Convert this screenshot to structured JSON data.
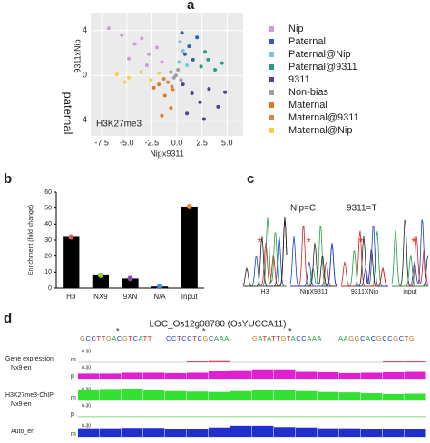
{
  "panel_a": {
    "label": "a",
    "type": "scatter",
    "annotation": "H3K27me3",
    "xlabel": "Nipx9311",
    "ylabel": "9311xNip",
    "ylabel_side": "paternal",
    "xlim": [
      -8.6,
      6.6
    ],
    "ylim": [
      -5.4,
      5.6
    ],
    "xticks": [
      -7.5,
      {
        "value": -5,
        "label": "-5.0"
      },
      -2.5,
      {
        "value": 0,
        "label": "0.0"
      },
      2.5,
      {
        "value": 5,
        "label": "5.0"
      }
    ],
    "yticks": [
      -4,
      0,
      4
    ],
    "grid": true,
    "series": [
      {
        "name": "Nip",
        "color": "#d49ad6",
        "x": [
          -6.8,
          -5.5,
          -4.2,
          -3.5,
          -2.8,
          -2,
          -1.5,
          -4.8,
          -3
        ],
        "y": [
          4.2,
          3.6,
          2.8,
          3.3,
          1.9,
          2.5,
          1.2,
          1.5,
          0.9
        ]
      },
      {
        "name": "Paternal",
        "color": "#2f5fb3",
        "x": [
          0.5,
          1.2,
          2,
          0.8,
          1.6
        ],
        "y": [
          3.8,
          2.6,
          3.4,
          1.9,
          1.4
        ]
      },
      {
        "name": "Paternal@Nip",
        "color": "#79c6e0",
        "x": [
          0.2,
          0.6,
          1,
          0.3
        ],
        "y": [
          1.2,
          2.2,
          0.9,
          3
        ]
      },
      {
        "name": "Paternal@9311",
        "color": "#1f9e89",
        "x": [
          2.4,
          3.1,
          3.8,
          4.5,
          2.8
        ],
        "y": [
          0.8,
          1.4,
          0.5,
          1.1,
          2.1
        ]
      },
      {
        "name": "9311",
        "color": "#5a3a9a",
        "x": [
          0.6,
          1.5,
          2.3,
          3.2,
          4.1,
          1,
          2.7,
          4.8
        ],
        "y": [
          -0.8,
          -1.6,
          -2.4,
          -1.2,
          -2.8,
          -3.4,
          -3.9,
          -1.5
        ]
      },
      {
        "name": "Non-bias",
        "color": "#9e9e9e",
        "x": [
          -0.6,
          -0.3,
          0.1,
          0.4,
          -0.1
        ],
        "y": [
          0.3,
          -0.2,
          0.5,
          -0.4,
          0
        ]
      },
      {
        "name": "Maternal",
        "color": "#e0781f",
        "x": [
          -1.8,
          -1.2,
          -0.6,
          -1.5,
          -0.4,
          -2.3
        ],
        "y": [
          -0.8,
          -1.8,
          -2.9,
          -3.6,
          -1.3,
          -1.1
        ]
      },
      {
        "name": "Maternal@9311",
        "color": "#c98a4b",
        "x": [
          -0.9,
          -0.5,
          -1.3
        ],
        "y": [
          -0.6,
          -1,
          -0.3
        ]
      },
      {
        "name": "Maternal@Nip",
        "color": "#f0d24a",
        "x": [
          -6,
          -4.8,
          -3.6,
          -2.6,
          -1.8,
          -5.2
        ],
        "y": [
          0.1,
          -0.2,
          0.3,
          -0.4,
          0.2,
          -0.6
        ]
      }
    ]
  },
  "panel_b": {
    "label": "b",
    "type": "bar",
    "ylabel": "Enrichment (fold change)",
    "categories": [
      "H3",
      "NX9",
      "9XN",
      "N/A",
      "Input"
    ],
    "values": [
      32,
      8,
      6,
      1,
      51
    ],
    "color": "#000000",
    "dot_colors": [
      "#e05a5a",
      "#9bc43c",
      "#8a4bb0",
      "#3a8fd8",
      "#f08a30"
    ],
    "ylim": [
      0,
      60
    ],
    "yticks": [
      0,
      10,
      20,
      30,
      40,
      50,
      60
    ]
  },
  "panel_c": {
    "label": "c",
    "alleles": [
      "Nip=C",
      "9311=T"
    ],
    "samples": [
      "H3",
      "NipX9311",
      "9311XNip",
      "input"
    ],
    "marker": "*"
  },
  "panel_d": {
    "label": "d",
    "title": "LOC_Os12g08780 (OsYUCCA11)",
    "sequence": [
      "GCCTTGACGTCATT",
      "CCTCCTCGCAAA",
      "GATATTGTACCAAA",
      "AAGGCACGCCGCTG"
    ],
    "marker": "*",
    "scale_label": "0-30",
    "track_ylim": [
      0,
      30
    ],
    "groups": [
      {
        "name": "Gene expression",
        "sample": "Nx9-en"
      },
      {
        "name": "H3K27me3-ChIP",
        "sample": "Nx9-en"
      },
      {
        "name": "Auto_en"
      }
    ],
    "tracks": [
      {
        "strand": "m",
        "group": 0,
        "color": "#e04a6a",
        "values": [
          0,
          0,
          0,
          0,
          0,
          4,
          5,
          0,
          0,
          0,
          0,
          0,
          0,
          0,
          3,
          3
        ]
      },
      {
        "strand": "p",
        "group": 0,
        "color": "#e020d0",
        "values": [
          12,
          12,
          14,
          14,
          13,
          14,
          18,
          20,
          22,
          22,
          16,
          15,
          13,
          14,
          15,
          16
        ]
      },
      {
        "strand": "m",
        "group": 1,
        "color": "#33e033",
        "values": [
          26,
          27,
          28,
          24,
          22,
          21,
          20,
          22,
          24,
          25,
          22,
          20,
          19,
          17,
          15,
          16
        ]
      },
      {
        "strand": "p",
        "group": 1,
        "color": "#33e033",
        "values": [
          1,
          1,
          1,
          1,
          1,
          1,
          1,
          1,
          1,
          1,
          1,
          1,
          1,
          1,
          1,
          1
        ]
      },
      {
        "strand": "m",
        "group": 2,
        "color": "#1f2fd0",
        "values": [
          20,
          20,
          21,
          21,
          19,
          19,
          22,
          26,
          26,
          23,
          22,
          20,
          20,
          18,
          19,
          19
        ]
      }
    ]
  }
}
